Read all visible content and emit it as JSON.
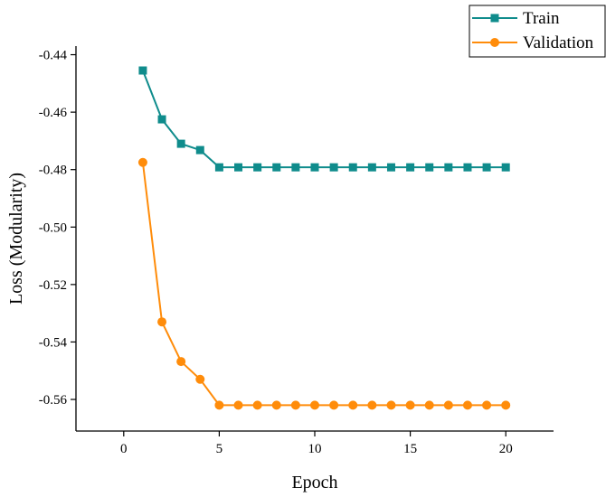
{
  "chart_data": {
    "type": "line",
    "title": "",
    "xlabel": "Epoch",
    "ylabel": "Loss (Modularity)",
    "xlim": [
      -2.5,
      22.5
    ],
    "ylim": [
      -0.571,
      -0.437
    ],
    "xticks": [
      0,
      5,
      10,
      15,
      20
    ],
    "xtick_labels": [
      "0",
      "5",
      "10",
      "15",
      "20"
    ],
    "yticks": [
      -0.44,
      -0.46,
      -0.48,
      -0.5,
      -0.52,
      -0.54,
      -0.56
    ],
    "ytick_labels": [
      "-0.44",
      "-0.46",
      "-0.48",
      "-0.50",
      "-0.52",
      "-0.54",
      "-0.56"
    ],
    "grid": false,
    "legend_position": "top-right",
    "x": [
      1,
      2,
      3,
      4,
      5,
      6,
      7,
      8,
      9,
      10,
      11,
      12,
      13,
      14,
      15,
      16,
      17,
      18,
      19,
      20
    ],
    "series": [
      {
        "name": "Train",
        "color": "#0f8c8c",
        "marker": "square",
        "values": [
          -0.4455,
          -0.4625,
          -0.471,
          -0.4732,
          -0.4792,
          -0.4792,
          -0.4792,
          -0.4792,
          -0.4792,
          -0.4792,
          -0.4792,
          -0.4792,
          -0.4792,
          -0.4792,
          -0.4792,
          -0.4792,
          -0.4792,
          -0.4792,
          -0.4792,
          -0.4792
        ]
      },
      {
        "name": "Validation",
        "color": "#ff8c0a",
        "marker": "circle",
        "values": [
          -0.4775,
          -0.533,
          -0.5468,
          -0.553,
          -0.562,
          -0.562,
          -0.562,
          -0.562,
          -0.562,
          -0.562,
          -0.562,
          -0.562,
          -0.562,
          -0.562,
          -0.562,
          -0.562,
          -0.562,
          -0.562,
          -0.562,
          -0.562
        ]
      }
    ]
  }
}
